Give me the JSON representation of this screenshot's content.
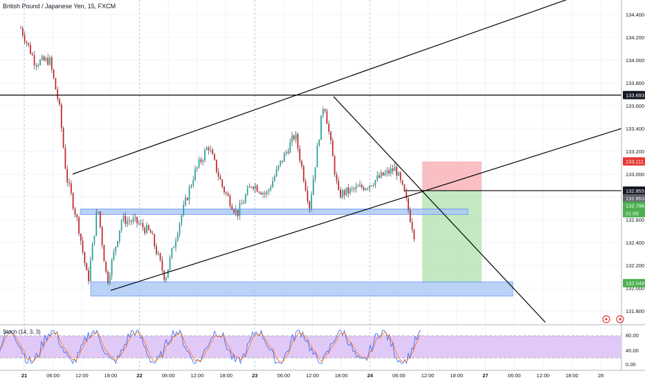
{
  "title": "British Pound / Japanese Yen, 15, FXCM",
  "stoch_label": "Stoch (14, 3, 3)",
  "colors": {
    "up": "#26a69a",
    "down": "#c62828",
    "wick": "#222222",
    "zone_fill": "#aac8f3",
    "zone_stroke": "#2962ff",
    "stop_fill": "#f8b4b8",
    "target_fill": "#b9e4b7",
    "badge_black": "#131722",
    "badge_red": "#e53935",
    "badge_green": "#4caf50",
    "badge_grey": "#5d606b",
    "stoch_band": "#e1c9f7",
    "stoch_k": "#2962ff",
    "stoch_d": "#ff6d00"
  },
  "chart_data": {
    "type": "line",
    "title": "British Pound / Japanese Yen, 15, FXCM",
    "xlabel": "",
    "ylabel": "",
    "ylim": [
      131.75,
      134.55
    ],
    "y_ticks": [
      "134.400",
      "134.200",
      "134.000",
      "133.800",
      "133.600",
      "133.400",
      "133.200",
      "133.000",
      "132.800",
      "132.600",
      "132.400",
      "132.200",
      "132.000",
      "131.800"
    ],
    "x_ticks": [
      "21",
      "06:00",
      "12:00",
      "18:00",
      "22",
      "06:00",
      "12:00",
      "18:00",
      "23",
      "06:00",
      "12:00",
      "18:00",
      "24",
      "06:00",
      "12:00",
      "18:00",
      "27",
      "06:00",
      "12:00",
      "18:00",
      "28"
    ],
    "x_ticks_bold": [
      "21",
      "22",
      "23",
      "24",
      "27"
    ],
    "series": [
      {
        "x": [
          "21 00:00",
          "21 03:00",
          "21 06:00",
          "21 08:00",
          "21 09:30",
          "21 12:00",
          "21 14:00",
          "21 16:00",
          "21 18:00",
          "21 21:00",
          "22 00:00",
          "22 03:00",
          "22 06:00",
          "22 09:00",
          "22 12:00",
          "22 15:00",
          "22 18:00",
          "22 21:00",
          "23 00:00",
          "23 03:00",
          "23 06:00",
          "23 09:00",
          "23 12:00",
          "23 15:00",
          "23 18:00",
          "23 21:00",
          "24 00:00",
          "24 03:00",
          "24 06:00",
          "24 08:00",
          "24 10:00"
        ],
        "values": [
          134.28,
          133.98,
          134.0,
          133.6,
          132.98,
          132.55,
          132.05,
          132.72,
          132.05,
          132.6,
          132.58,
          132.48,
          132.08,
          132.58,
          133.0,
          133.25,
          132.88,
          132.65,
          132.92,
          132.82,
          133.1,
          133.35,
          132.72,
          133.65,
          132.82,
          132.86,
          132.9,
          132.98,
          133.05,
          132.8,
          132.45
        ]
      }
    ],
    "horizontal_levels": [
      133.693,
      132.855
    ],
    "price_labels": [
      {
        "text": "133.693",
        "color": "black"
      },
      {
        "text": "133.111",
        "color": "red"
      },
      {
        "text": "132.855",
        "color": "black"
      },
      {
        "text": "132.853",
        "color": "grey"
      },
      {
        "text": "132.796",
        "color": "green"
      },
      {
        "text": "01:00",
        "color": "green"
      },
      {
        "text": "132.044",
        "color": "green"
      }
    ],
    "stoch_ticks": [
      "80.00",
      "40.00",
      "0.00"
    ],
    "stoch_band": [
      20,
      80
    ],
    "grid": true
  }
}
